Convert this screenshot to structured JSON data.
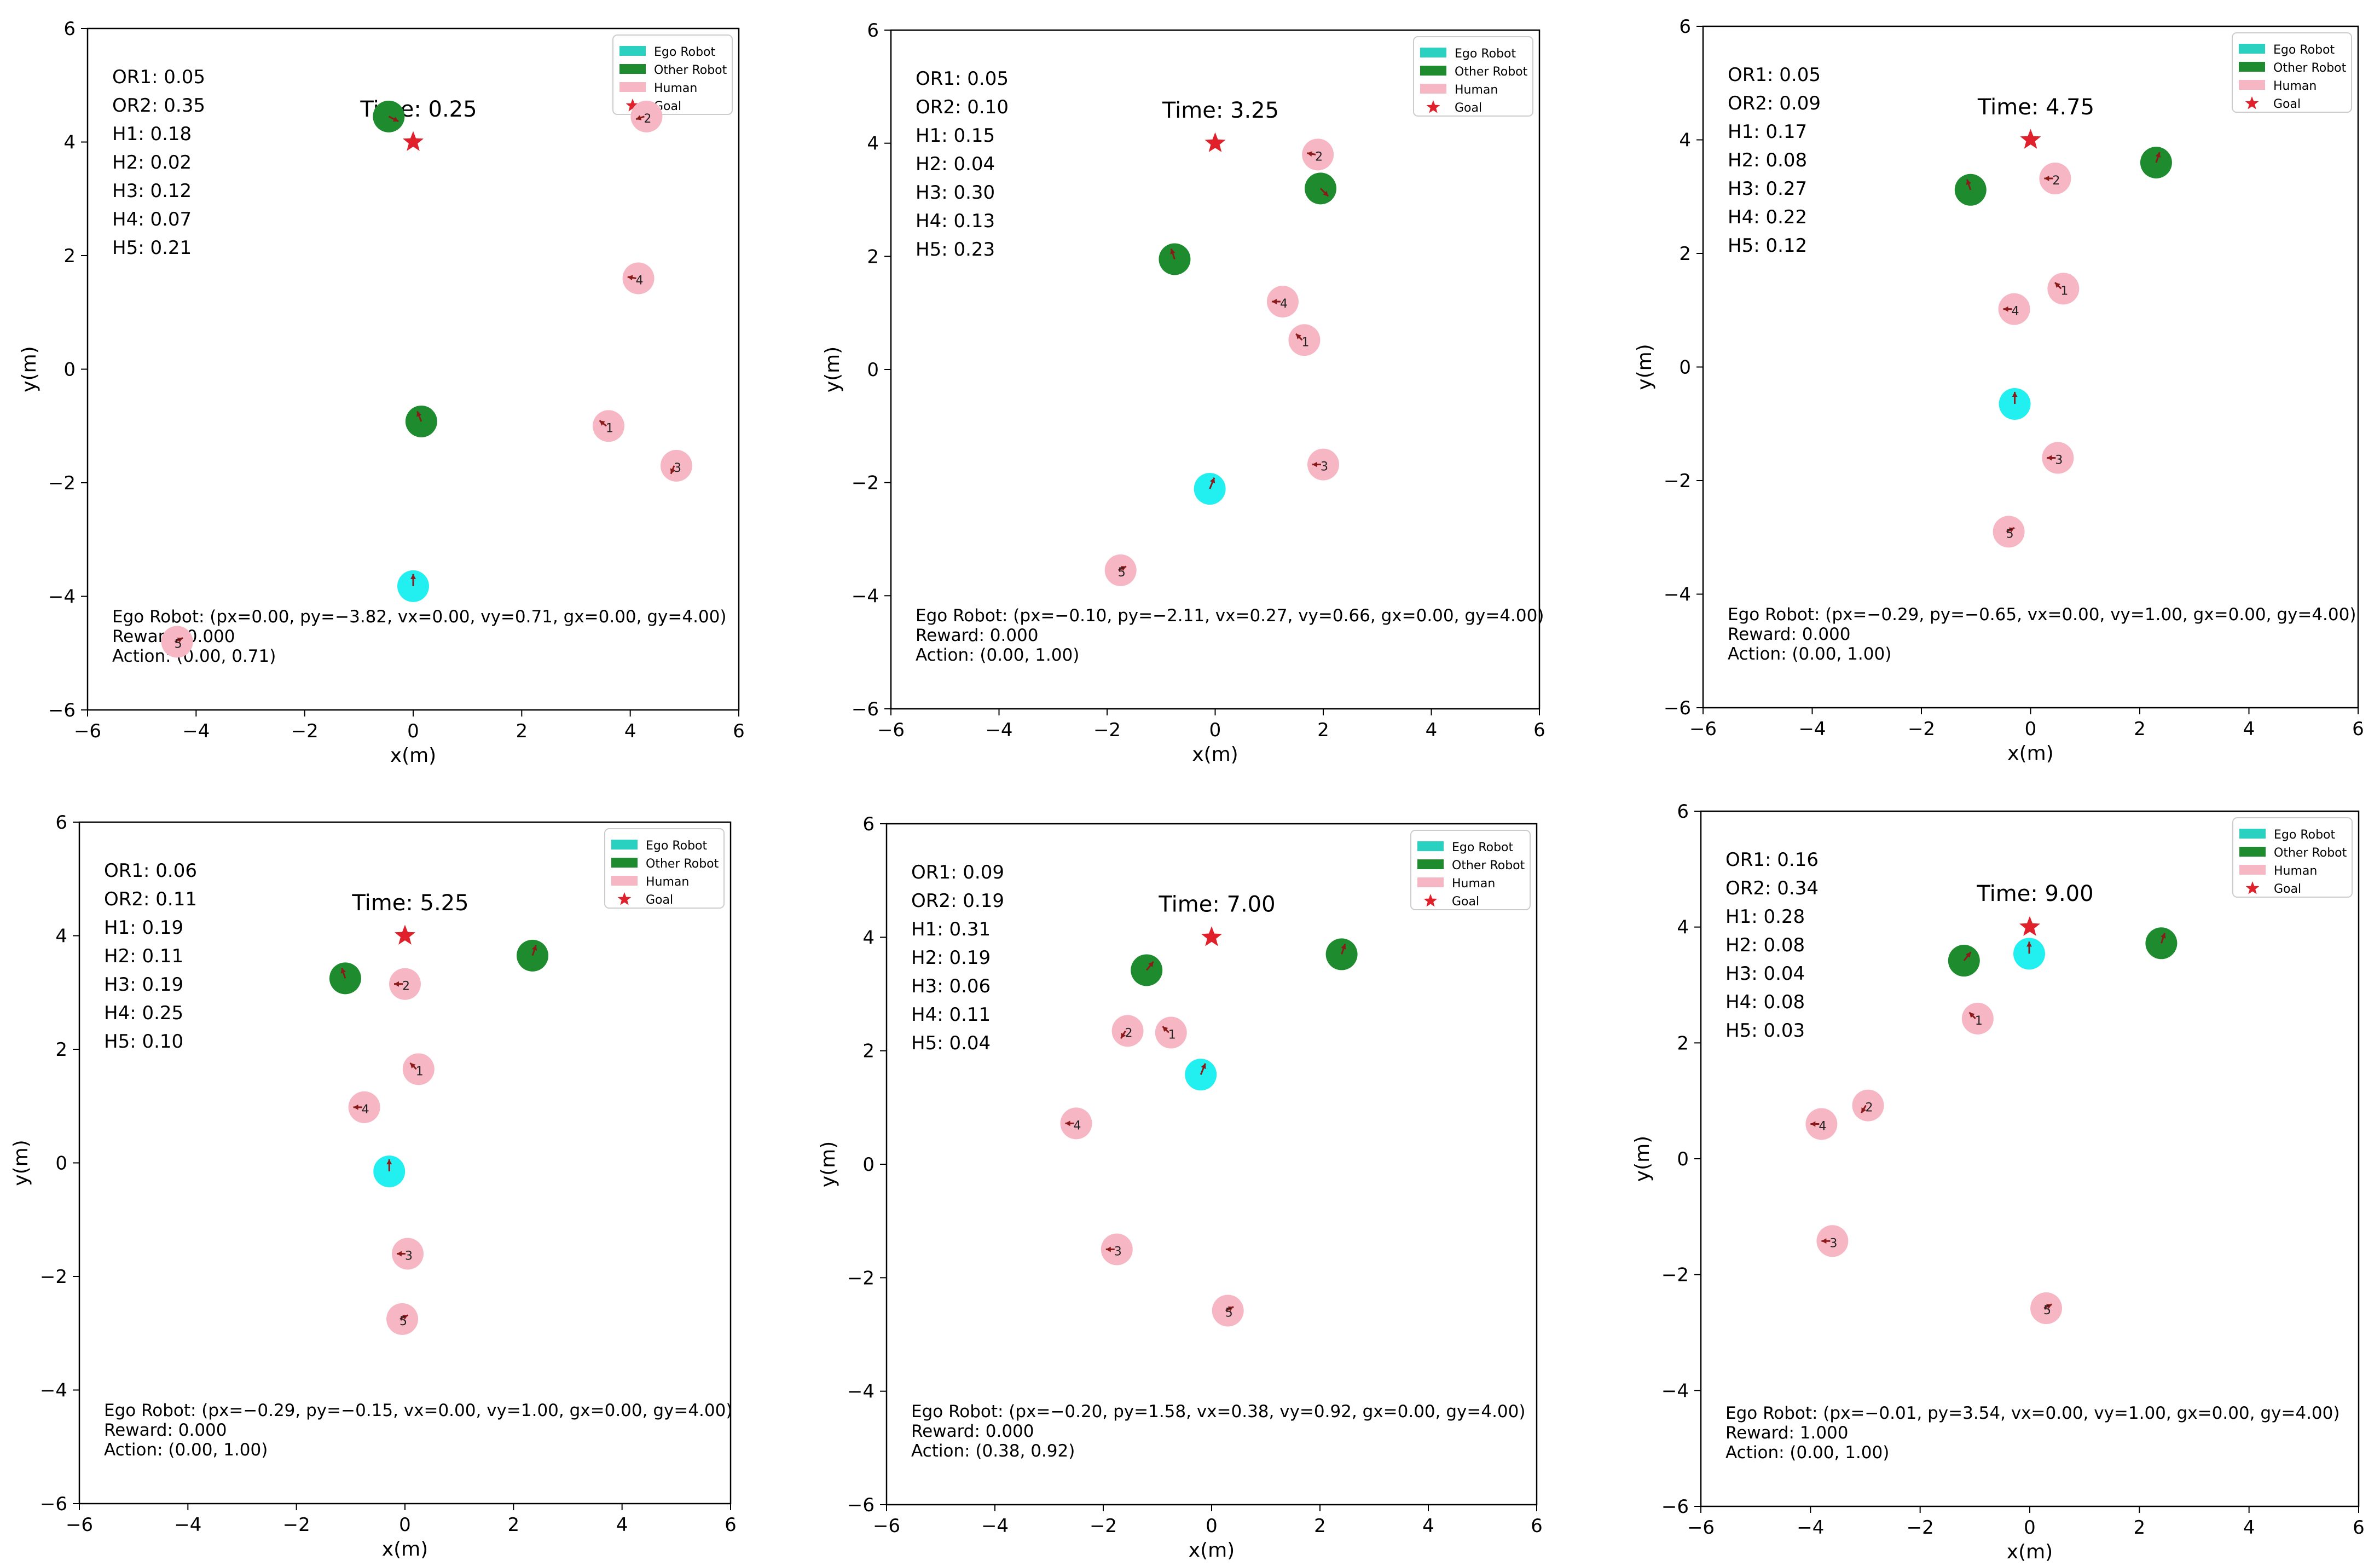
{
  "legend": {
    "ego": "Ego Robot",
    "other": "Other Robot",
    "human": "Human",
    "goal": "Goal"
  },
  "colors": {
    "ego": "#22f0f0",
    "ego_legend": "#2ad1c0",
    "other": "#1e8c2e",
    "human": "#f7b6c4",
    "goal": "#e0202a",
    "arrow": "#8b1a1a",
    "axis": "#000000",
    "text": "#000000"
  },
  "chart_data": [
    {
      "type": "scatter",
      "xlabel": "x(m)",
      "ylabel": "y(m)",
      "xlim": [
        -6,
        6
      ],
      "ylim": [
        -6,
        6
      ],
      "xticks": [
        "−6",
        "−4",
        "−2",
        "0",
        "2",
        "4",
        "6"
      ],
      "yticks": [
        "−6",
        "−4",
        "−2",
        "0",
        "2",
        "4",
        "6"
      ],
      "time_label": "Time: 0.25",
      "metrics": [
        "OR1: 0.05",
        "OR2: 0.35",
        "H1: 0.18",
        "H2: 0.02",
        "H3: 0.12",
        "H4: 0.07",
        "H5: 0.21"
      ],
      "status": [
        "Ego Robot: (px=0.00, py=−3.82, vx=0.00, vy=0.71, gx=0.00, gy=4.00)",
        " Reward: 0.000",
        "Action: (0.00, 0.71)"
      ],
      "goal": [
        0,
        4
      ],
      "ego": {
        "x": 0.0,
        "y": -3.82,
        "vx": 0.0,
        "vy": 0.71
      },
      "other_robots": [
        {
          "label": "OR1",
          "x": -0.45,
          "y": 4.45,
          "vx": 0.6,
          "vy": -0.3
        },
        {
          "label": "OR2",
          "x": 0.15,
          "y": -0.92,
          "vx": -0.2,
          "vy": 0.5
        }
      ],
      "humans": [
        {
          "id": "1",
          "x": 3.6,
          "y": -1.0,
          "vx": -0.5,
          "vy": 0.4
        },
        {
          "id": "2",
          "x": 4.3,
          "y": 4.45,
          "vx": -0.6,
          "vy": -0.2
        },
        {
          "id": "3",
          "x": 4.85,
          "y": -1.7,
          "vx": -0.2,
          "vy": -0.5
        },
        {
          "id": "4",
          "x": 4.15,
          "y": 1.6,
          "vx": -0.6,
          "vy": 0.1
        },
        {
          "id": "5",
          "x": -4.35,
          "y": -4.8,
          "vx": 0.6,
          "vy": 0.3
        }
      ]
    },
    {
      "type": "scatter",
      "xlabel": "x(m)",
      "ylabel": "y(m)",
      "xlim": [
        -6,
        6
      ],
      "ylim": [
        -6,
        6
      ],
      "xticks": [
        "−6",
        "−4",
        "−2",
        "0",
        "2",
        "4",
        "6"
      ],
      "yticks": [
        "−6",
        "−4",
        "−2",
        "0",
        "2",
        "4",
        "6"
      ],
      "time_label": "Time: 3.25",
      "metrics": [
        "OR1: 0.05",
        "OR2: 0.10",
        "H1: 0.15",
        "H2: 0.04",
        "H3: 0.30",
        "H4: 0.13",
        "H5: 0.23"
      ],
      "status": [
        "Ego Robot: (px=−0.10, py=−2.11, vx=0.27, vy=0.66, gx=0.00, gy=4.00)",
        " Reward: 0.000",
        "Action: (0.00, 1.00)"
      ],
      "goal": [
        0,
        4
      ],
      "ego": {
        "x": -0.1,
        "y": -2.11,
        "vx": 0.27,
        "vy": 0.66
      },
      "other_robots": [
        {
          "label": "OR1",
          "x": -0.75,
          "y": 1.95,
          "vx": -0.2,
          "vy": 0.6
        },
        {
          "label": "OR2",
          "x": 1.95,
          "y": 3.2,
          "vx": 0.4,
          "vy": -0.4
        }
      ],
      "humans": [
        {
          "id": "1",
          "x": 1.65,
          "y": 0.52,
          "vx": -0.4,
          "vy": 0.4
        },
        {
          "id": "2",
          "x": 1.9,
          "y": 3.8,
          "vx": -0.6,
          "vy": 0.1
        },
        {
          "id": "3",
          "x": 2.0,
          "y": -1.68,
          "vx": -0.6,
          "vy": 0.0
        },
        {
          "id": "4",
          "x": 1.25,
          "y": 1.2,
          "vx": -0.6,
          "vy": 0.0
        },
        {
          "id": "5",
          "x": -1.75,
          "y": -3.55,
          "vx": 0.6,
          "vy": 0.3
        }
      ]
    },
    {
      "type": "scatter",
      "xlabel": "x(m)",
      "ylabel": "y(m)",
      "xlim": [
        -6,
        6
      ],
      "ylim": [
        -6,
        6
      ],
      "xticks": [
        "−6",
        "−4",
        "−2",
        "0",
        "2",
        "4",
        "6"
      ],
      "yticks": [
        "−6",
        "−4",
        "−2",
        "0",
        "2",
        "4",
        "6"
      ],
      "time_label": "Time: 4.75",
      "metrics": [
        "OR1: 0.05",
        "OR2: 0.09",
        "H1: 0.17",
        "H2: 0.08",
        "H3: 0.27",
        "H4: 0.22",
        "H5: 0.12"
      ],
      "status": [
        "Ego Robot: (px=−0.29, py=−0.65, vx=0.00, vy=1.00, gx=0.00, gy=4.00)",
        " Reward: 0.000",
        "Action: (0.00, 1.00)"
      ],
      "goal": [
        0,
        4
      ],
      "ego": {
        "x": -0.29,
        "y": -0.65,
        "vx": 0.0,
        "vy": 1.0
      },
      "other_robots": [
        {
          "label": "OR1",
          "x": -1.1,
          "y": 3.12,
          "vx": -0.2,
          "vy": 0.6
        },
        {
          "label": "OR2",
          "x": 2.3,
          "y": 3.6,
          "vx": 0.2,
          "vy": 0.6
        }
      ],
      "humans": [
        {
          "id": "1",
          "x": 0.6,
          "y": 1.38,
          "vx": -0.4,
          "vy": 0.4
        },
        {
          "id": "2",
          "x": 0.45,
          "y": 3.32,
          "vx": -0.6,
          "vy": 0.0
        },
        {
          "id": "3",
          "x": 0.5,
          "y": -1.6,
          "vx": -0.6,
          "vy": 0.0
        },
        {
          "id": "4",
          "x": -0.3,
          "y": 1.02,
          "vx": -0.6,
          "vy": 0.0
        },
        {
          "id": "5",
          "x": -0.4,
          "y": -2.9,
          "vx": 0.6,
          "vy": 0.3
        }
      ]
    },
    {
      "type": "scatter",
      "xlabel": "x(m)",
      "ylabel": "y(m)",
      "xlim": [
        -6,
        6
      ],
      "ylim": [
        -6,
        6
      ],
      "xticks": [
        "−6",
        "−4",
        "−2",
        "0",
        "2",
        "4",
        "6"
      ],
      "yticks": [
        "−6",
        "−4",
        "−2",
        "0",
        "2",
        "4",
        "6"
      ],
      "time_label": "Time: 5.25",
      "metrics": [
        "OR1: 0.06",
        "OR2: 0.11",
        "H1: 0.19",
        "H2: 0.11",
        "H3: 0.19",
        "H4: 0.25",
        "H5: 0.10"
      ],
      "status": [
        "Ego Robot: (px=−0.29, py=−0.15, vx=0.00, vy=1.00, gx=0.00, gy=4.00)",
        " Reward: 0.000",
        "Action: (0.00, 1.00)"
      ],
      "goal": [
        0,
        4
      ],
      "ego": {
        "x": -0.29,
        "y": -0.15,
        "vx": 0.0,
        "vy": 1.0
      },
      "other_robots": [
        {
          "label": "OR1",
          "x": -1.1,
          "y": 3.25,
          "vx": -0.2,
          "vy": 0.6
        },
        {
          "label": "OR2",
          "x": 2.35,
          "y": 3.65,
          "vx": 0.2,
          "vy": 0.6
        }
      ],
      "humans": [
        {
          "id": "1",
          "x": 0.25,
          "y": 1.65,
          "vx": -0.4,
          "vy": 0.4
        },
        {
          "id": "2",
          "x": 0.0,
          "y": 3.15,
          "vx": -0.6,
          "vy": 0.0
        },
        {
          "id": "3",
          "x": 0.05,
          "y": -1.6,
          "vx": -0.6,
          "vy": 0.0
        },
        {
          "id": "4",
          "x": -0.75,
          "y": 0.98,
          "vx": -0.6,
          "vy": 0.0
        },
        {
          "id": "5",
          "x": -0.05,
          "y": -2.75,
          "vx": 0.6,
          "vy": 0.3
        }
      ]
    },
    {
      "type": "scatter",
      "xlabel": "x(m)",
      "ylabel": "y(m)",
      "xlim": [
        -6,
        6
      ],
      "ylim": [
        -6,
        6
      ],
      "xticks": [
        "−6",
        "−4",
        "−2",
        "0",
        "2",
        "4",
        "6"
      ],
      "yticks": [
        "−6",
        "−4",
        "−2",
        "0",
        "2",
        "4",
        "6"
      ],
      "time_label": "Time: 7.00",
      "metrics": [
        "OR1: 0.09",
        "OR2: 0.19",
        "H1: 0.31",
        "H2: 0.19",
        "H3: 0.06",
        "H4: 0.11",
        "H5: 0.04"
      ],
      "status": [
        "Ego Robot: (px=−0.20, py=1.58, vx=0.38, vy=0.92, gx=0.00, gy=4.00)",
        " Reward: 0.000",
        "Action: (0.38, 0.92)"
      ],
      "goal": [
        0,
        4
      ],
      "ego": {
        "x": -0.2,
        "y": 1.58,
        "vx": 0.38,
        "vy": 0.92
      },
      "other_robots": [
        {
          "label": "OR1",
          "x": -1.2,
          "y": 3.42,
          "vx": 0.4,
          "vy": 0.5
        },
        {
          "label": "OR2",
          "x": 2.4,
          "y": 3.7,
          "vx": 0.2,
          "vy": 0.6
        }
      ],
      "humans": [
        {
          "id": "1",
          "x": -0.75,
          "y": 2.32,
          "vx": -0.4,
          "vy": 0.4
        },
        {
          "id": "2",
          "x": -1.55,
          "y": 2.35,
          "vx": -0.3,
          "vy": -0.5
        },
        {
          "id": "3",
          "x": -1.75,
          "y": -1.5,
          "vx": -0.6,
          "vy": 0.0
        },
        {
          "id": "4",
          "x": -2.5,
          "y": 0.72,
          "vx": -0.6,
          "vy": 0.0
        },
        {
          "id": "5",
          "x": 0.3,
          "y": -2.58,
          "vx": 0.6,
          "vy": 0.3
        }
      ]
    },
    {
      "type": "scatter",
      "xlabel": "x(m)",
      "ylabel": "y(m)",
      "xlim": [
        -6,
        6
      ],
      "ylim": [
        -6,
        6
      ],
      "xticks": [
        "−6",
        "−4",
        "−2",
        "0",
        "2",
        "4",
        "6"
      ],
      "yticks": [
        "−6",
        "−4",
        "−2",
        "0",
        "2",
        "4",
        "6"
      ],
      "time_label": "Time: 9.00",
      "metrics": [
        "OR1: 0.16",
        "OR2: 0.34",
        "H1: 0.28",
        "H2: 0.08",
        "H3: 0.04",
        "H4: 0.08",
        "H5: 0.03"
      ],
      "status": [
        "Ego Robot: (px=−0.01, py=3.54, vx=0.00, vy=1.00, gx=0.00, gy=4.00)",
        " Reward: 1.000",
        "Action: (0.00, 1.00)"
      ],
      "goal": [
        0,
        4
      ],
      "ego": {
        "x": -0.01,
        "y": 3.54,
        "vx": 0.0,
        "vy": 1.0
      },
      "other_robots": [
        {
          "label": "OR1",
          "x": -1.2,
          "y": 3.42,
          "vx": 0.4,
          "vy": 0.5
        },
        {
          "label": "OR2",
          "x": 2.4,
          "y": 3.72,
          "vx": 0.2,
          "vy": 0.6
        }
      ],
      "humans": [
        {
          "id": "1",
          "x": -0.95,
          "y": 2.42,
          "vx": -0.4,
          "vy": 0.4
        },
        {
          "id": "2",
          "x": -2.95,
          "y": 0.92,
          "vx": -0.3,
          "vy": -0.5
        },
        {
          "id": "3",
          "x": -3.6,
          "y": -1.42,
          "vx": -0.6,
          "vy": 0.0
        },
        {
          "id": "4",
          "x": -3.8,
          "y": 0.6,
          "vx": -0.6,
          "vy": 0.0
        },
        {
          "id": "5",
          "x": 0.3,
          "y": -2.58,
          "vx": 0.6,
          "vy": 0.3
        }
      ]
    }
  ]
}
